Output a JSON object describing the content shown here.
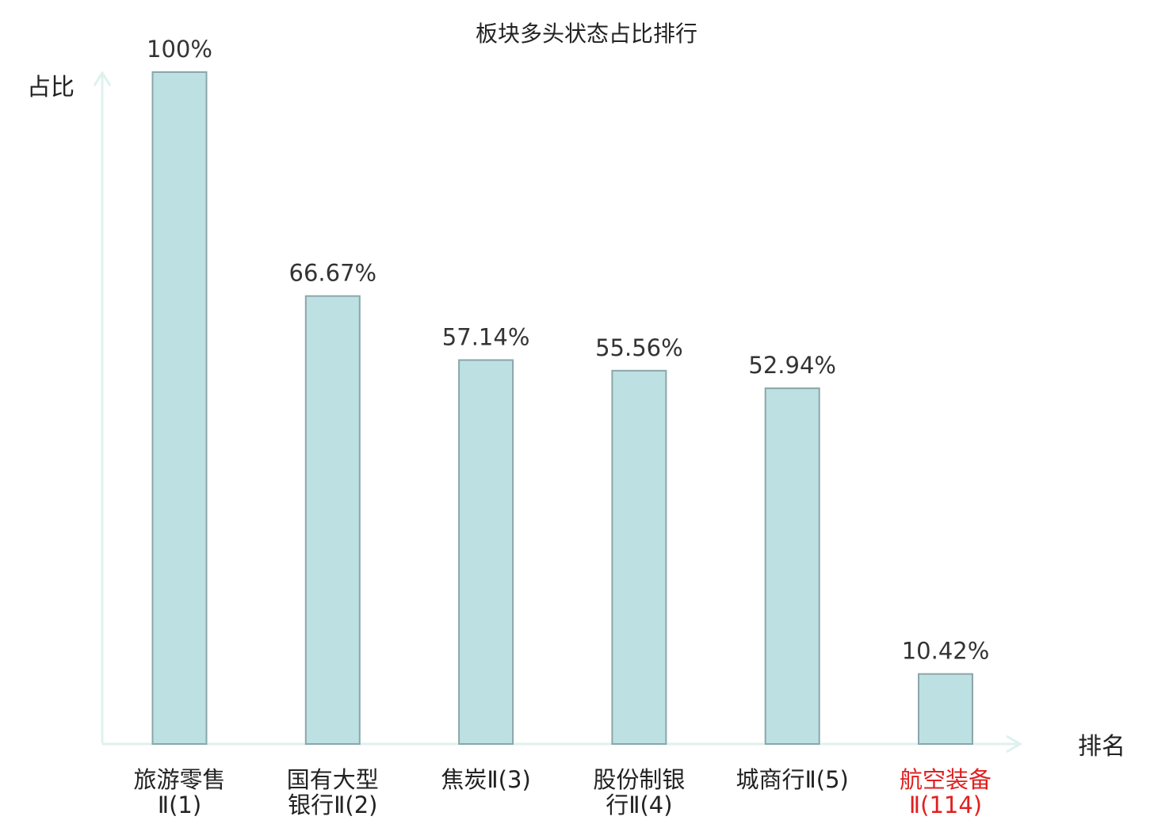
{
  "chart_data": {
    "type": "bar",
    "title": "板块多头状态占比排行",
    "ylabel": "占比",
    "xlabel": "排名",
    "ylim": [
      0,
      100
    ],
    "categories": [
      {
        "name": "旅游零售",
        "suffix": "Ⅱ(1)",
        "line1": "旅游零售",
        "line2": "Ⅱ(1)",
        "highlight": false
      },
      {
        "name": "国有大型银行",
        "suffix": "Ⅱ(2)",
        "line1": "国有大型",
        "line2": "银行Ⅱ(2)",
        "highlight": false
      },
      {
        "name": "焦炭",
        "suffix": "Ⅱ(3)",
        "line1": "焦炭Ⅱ(3)",
        "line2": "",
        "highlight": false
      },
      {
        "name": "股份制银行",
        "suffix": "Ⅱ(4)",
        "line1": "股份制银",
        "line2": "行Ⅱ(4)",
        "highlight": false
      },
      {
        "name": "城商行",
        "suffix": "Ⅱ(5)",
        "line1": "城商行Ⅱ(5)",
        "line2": "",
        "highlight": false
      },
      {
        "name": "航空装备",
        "suffix": "Ⅱ(114)",
        "line1": "航空装备",
        "line2": "Ⅱ(114)",
        "highlight": true
      }
    ],
    "values": [
      100,
      66.67,
      57.14,
      55.56,
      52.94,
      10.42
    ],
    "value_labels": [
      "100%",
      "66.67%",
      "57.14%",
      "55.56%",
      "52.94%",
      "10.42%"
    ],
    "grid": false,
    "colors": {
      "bar_fill": "#bde0e3",
      "bar_stroke": "#8aa7aa",
      "axis": "#dff1ee",
      "highlight_text": "#e02020"
    }
  }
}
